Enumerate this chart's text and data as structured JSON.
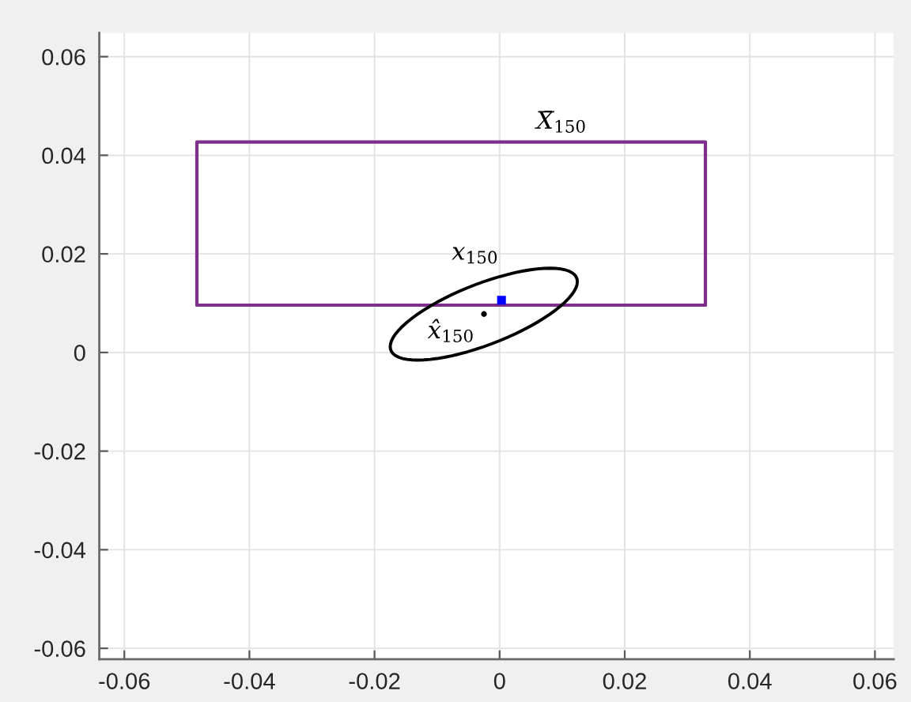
{
  "chart_data": {
    "type": "line",
    "xlim": [
      -0.064,
      0.063
    ],
    "ylim": [
      -0.0622,
      0.0648
    ],
    "xticks": [
      -0.06,
      -0.04,
      -0.02,
      0,
      0.02,
      0.04,
      0.06
    ],
    "yticks": [
      -0.06,
      -0.04,
      -0.02,
      0,
      0.02,
      0.04,
      0.06
    ],
    "grid": true,
    "series": [
      {
        "color": "#7e2f8e",
        "x": [
          -0.0484,
          -0.0484,
          0.0329,
          0.0329
        ],
        "values": [
          0.0096,
          0.0427,
          0.0427,
          0.0096
        ]
      },
      {
        "color": "#7e2f8e",
        "x": [
          -0.0484,
          0.0329
        ],
        "values": [
          0.0096,
          0.0096
        ]
      },
      {
        "type": "scatter",
        "marker": "circle",
        "color": "#000000",
        "x": [
          -0.0025
        ],
        "values": [
          0.0078
        ]
      },
      {
        "type": "scatter",
        "marker": "square",
        "color": "#0000ff",
        "x": [
          0.0003
        ],
        "values": [
          0.0106
        ]
      }
    ],
    "annotations": [
      {
        "text": "X̄$_{150}$",
        "x": 0.0099,
        "y": 0.0427
      },
      {
        "text": "x$_{150}$",
        "x": 0.0003,
        "y": 0.0106
      },
      {
        "text": "x̂$_{150}$",
        "x": -0.0025,
        "y": 0.0078
      }
    ]
  }
}
